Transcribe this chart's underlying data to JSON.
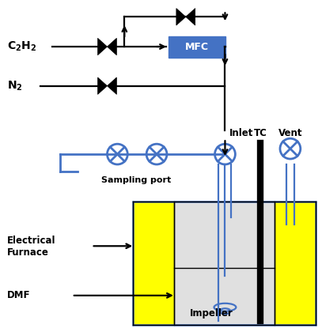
{
  "bg_color": "#ffffff",
  "line_color": "#000000",
  "blue_line_color": "#4472c4",
  "mfc_color": "#4472c4",
  "yellow_color": "#ffff00",
  "gray_color": "#e0e0e0",
  "text_c2h2": "$\\mathbf{C_2H_2}$",
  "text_n2": "$\\mathbf{N_2}$",
  "text_mfc": "MFC",
  "text_inlet": "Inlet",
  "text_sampling": "Sampling port",
  "text_tc": "TC",
  "text_vent": "Vent",
  "text_elec1": "Electrical",
  "text_elec2": "Furnace",
  "text_dmf": "DMF",
  "text_impeller": "Impeller"
}
